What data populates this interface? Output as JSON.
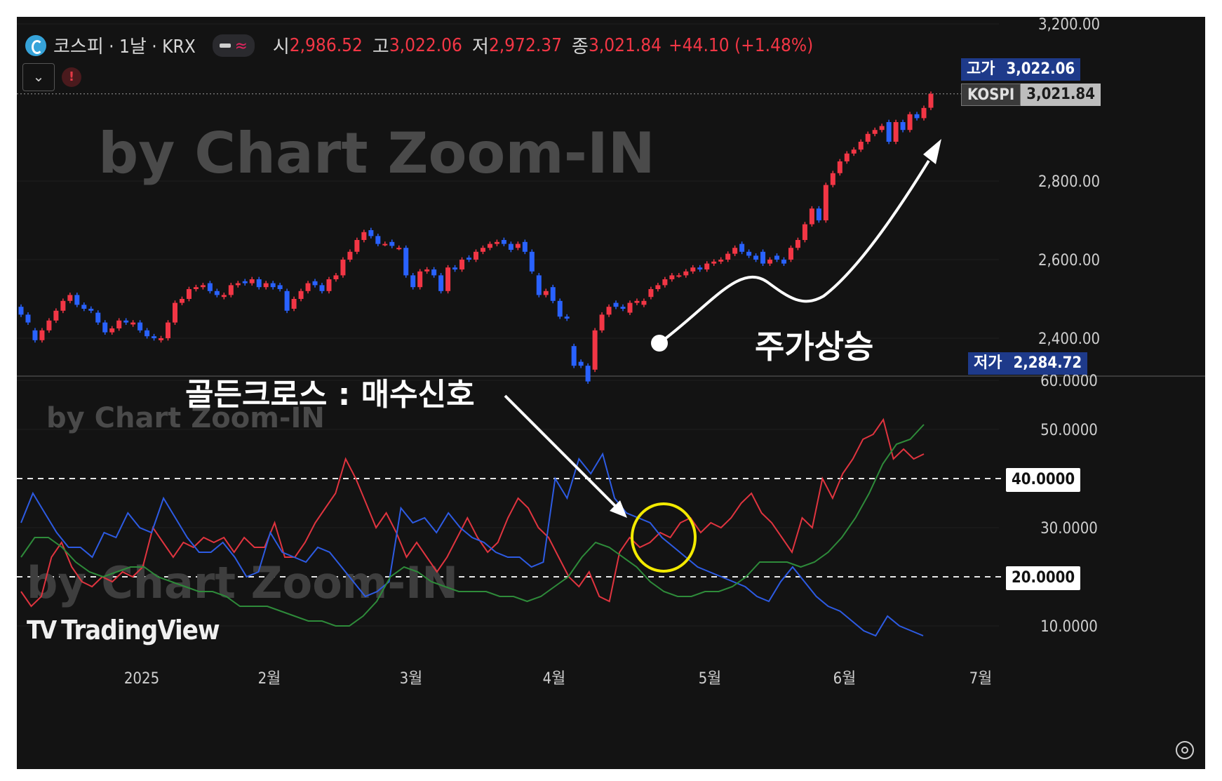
{
  "header": {
    "symbol_line": "코스피 · 1날 · KRX",
    "ohlc": [
      {
        "key": "시",
        "value": "2,986.52"
      },
      {
        "key": "고",
        "value": "3,022.06"
      },
      {
        "key": "저",
        "value": "2,972.37"
      },
      {
        "key": "종",
        "value": "3,021.84"
      }
    ],
    "change": "+44.10 (+1.48%)",
    "dropdown_icon": "chevron-down-icon",
    "alert_icon": "exclamation-icon",
    "alert_text": "!"
  },
  "price_tags": {
    "high_label": "고가",
    "high_value": "3,022.06",
    "last_label": "KOSPI",
    "last_value": "3,021.84",
    "low_label": "저가",
    "low_value": "2,284.72"
  },
  "indicator_tags": [
    "40.0000",
    "20.0000"
  ],
  "watermark": "by Chart Zoom-IN",
  "brand": "TradingView",
  "annotations": {
    "price_up": "주가상승",
    "golden_cross": "골든크로스 : 매수신호"
  },
  "colors": {
    "background": "#131313",
    "up": "#f23645",
    "down": "#2962ff",
    "di_plus": "#e0343f",
    "di_minus": "#2d5be3",
    "adx": "#2e8b3a",
    "highlight_circle": "#f3ea00"
  },
  "chart_data": [
    {
      "type": "candlestick",
      "title": "코스피 · 1날 · KRX",
      "y_ticks": [
        "3,200.00",
        "2,800.00",
        "2,600.00",
        "2,400.00"
      ],
      "ylim": [
        2280,
        3220
      ],
      "x_ticks": [
        "2025",
        "2월",
        "3월",
        "4월",
        "5월",
        "6월",
        "7월"
      ],
      "close": [
        2460,
        2440,
        2395,
        2420,
        2445,
        2470,
        2495,
        2510,
        2485,
        2475,
        2470,
        2440,
        2415,
        2425,
        2445,
        2440,
        2440,
        2420,
        2405,
        2400,
        2400,
        2440,
        2490,
        2500,
        2525,
        2530,
        2535,
        2520,
        2510,
        2510,
        2535,
        2540,
        2540,
        2550,
        2530,
        2540,
        2530,
        2525,
        2470,
        2500,
        2520,
        2540,
        2535,
        2520,
        2550,
        2560,
        2600,
        2620,
        2650,
        2670,
        2660,
        2640,
        2640,
        2635,
        2630,
        2560,
        2530,
        2570,
        2575,
        2560,
        2520,
        2580,
        2575,
        2600,
        2600,
        2620,
        2630,
        2640,
        2645,
        2640,
        2625,
        2640,
        2620,
        2570,
        2510,
        2520,
        2495,
        2455,
        2450,
        2330,
        2330,
        2290,
        2420,
        2460,
        2480,
        2480,
        2475,
        2490,
        2495,
        2495,
        2525,
        2535,
        2550,
        2560,
        2560,
        2570,
        2580,
        2575,
        2590,
        2595,
        2600,
        2615,
        2630,
        2620,
        2610,
        2600,
        2590,
        2600,
        2600,
        2590,
        2630,
        2650,
        2690,
        2730,
        2700,
        2790,
        2820,
        2850,
        2870,
        2880,
        2900,
        2920,
        2930,
        2940,
        2900,
        2950,
        2930,
        2970,
        2960,
        2986,
        3021.84
      ],
      "open": [
        2480,
        2460,
        2420,
        2395,
        2420,
        2445,
        2470,
        2495,
        2510,
        2485,
        2475,
        2465,
        2440,
        2415,
        2425,
        2445,
        2435,
        2440,
        2420,
        2405,
        2395,
        2400,
        2440,
        2490,
        2500,
        2525,
        2530,
        2540,
        2520,
        2505,
        2510,
        2535,
        2545,
        2540,
        2550,
        2530,
        2540,
        2535,
        2520,
        2475,
        2500,
        2520,
        2545,
        2535,
        2520,
        2550,
        2560,
        2600,
        2620,
        2650,
        2675,
        2660,
        2640,
        2645,
        2630,
        2630,
        2560,
        2530,
        2570,
        2575,
        2560,
        2520,
        2580,
        2575,
        2605,
        2600,
        2620,
        2630,
        2640,
        2650,
        2640,
        2630,
        2645,
        2620,
        2560,
        2510,
        2530,
        2495,
        2455,
        2380,
        2340,
        2330,
        2320,
        2420,
        2460,
        2490,
        2480,
        2465,
        2490,
        2485,
        2505,
        2525,
        2535,
        2550,
        2560,
        2560,
        2570,
        2580,
        2575,
        2590,
        2595,
        2600,
        2615,
        2640,
        2620,
        2610,
        2620,
        2590,
        2610,
        2600,
        2600,
        2630,
        2650,
        2690,
        2730,
        2700,
        2790,
        2820,
        2850,
        2870,
        2880,
        2900,
        2920,
        2930,
        2950,
        2900,
        2950,
        2930,
        2970,
        2960,
        2986.52
      ]
    },
    {
      "type": "line",
      "title": "",
      "y_ticks": [
        "60.0000",
        "50.0000",
        "40.0000",
        "30.0000",
        "20.0000",
        "10.0000"
      ],
      "ylim": [
        4,
        61
      ],
      "reference_lines": [
        40,
        20
      ],
      "series": [
        {
          "name": "",
          "color": "#e0343f",
          "values": [
            17,
            14,
            16,
            24,
            27,
            22,
            19,
            18,
            20,
            19,
            21,
            20,
            22,
            30,
            27,
            24,
            27,
            26,
            28,
            27,
            28,
            25,
            28,
            26,
            26,
            31,
            24,
            24,
            27,
            31,
            34,
            37,
            44,
            40,
            35,
            30,
            33,
            29,
            24,
            27,
            24,
            21,
            24,
            28,
            32,
            28,
            25,
            27,
            32,
            36,
            34,
            30,
            28,
            24,
            20,
            18,
            21,
            16,
            15,
            25,
            28,
            26,
            27,
            29,
            28,
            31,
            32,
            29,
            31,
            30,
            32,
            35,
            37,
            33,
            31,
            28,
            25,
            32,
            30,
            40,
            36,
            41,
            44,
            48,
            49,
            52,
            44,
            46,
            44,
            45
          ]
        },
        {
          "name": "",
          "color": "#2d5be3",
          "values": [
            31,
            37,
            33,
            29,
            26,
            26,
            24,
            29,
            28,
            33,
            30,
            29,
            36,
            32,
            28,
            25,
            25,
            27,
            24,
            20,
            21,
            29,
            25,
            24,
            23,
            26,
            25,
            22,
            19,
            16,
            17,
            19,
            34,
            31,
            32,
            29,
            33,
            30,
            28,
            27,
            25,
            24,
            24,
            22,
            23,
            40,
            36,
            44,
            41,
            45,
            36,
            33,
            32,
            31,
            28,
            26,
            24,
            22,
            21,
            20,
            19,
            18,
            16,
            15,
            19,
            22,
            19,
            16,
            14,
            13,
            11,
            9,
            8,
            12,
            10,
            9,
            8
          ]
        },
        {
          "name": "",
          "color": "#2e8b3a",
          "values": [
            24,
            28,
            28,
            26,
            23,
            21,
            20,
            21,
            22,
            22,
            20,
            19,
            18,
            17,
            17,
            16,
            14,
            14,
            14,
            13,
            12,
            11,
            11,
            10,
            10,
            12,
            15,
            20,
            22,
            21,
            19,
            18,
            17,
            17,
            17,
            16,
            16,
            15,
            16,
            18,
            20,
            24,
            27,
            26,
            24,
            22,
            19,
            17,
            16,
            16,
            17,
            17,
            18,
            20,
            23,
            23,
            23,
            22,
            23,
            25,
            28,
            32,
            37,
            43,
            47,
            48,
            51
          ]
        }
      ]
    }
  ]
}
